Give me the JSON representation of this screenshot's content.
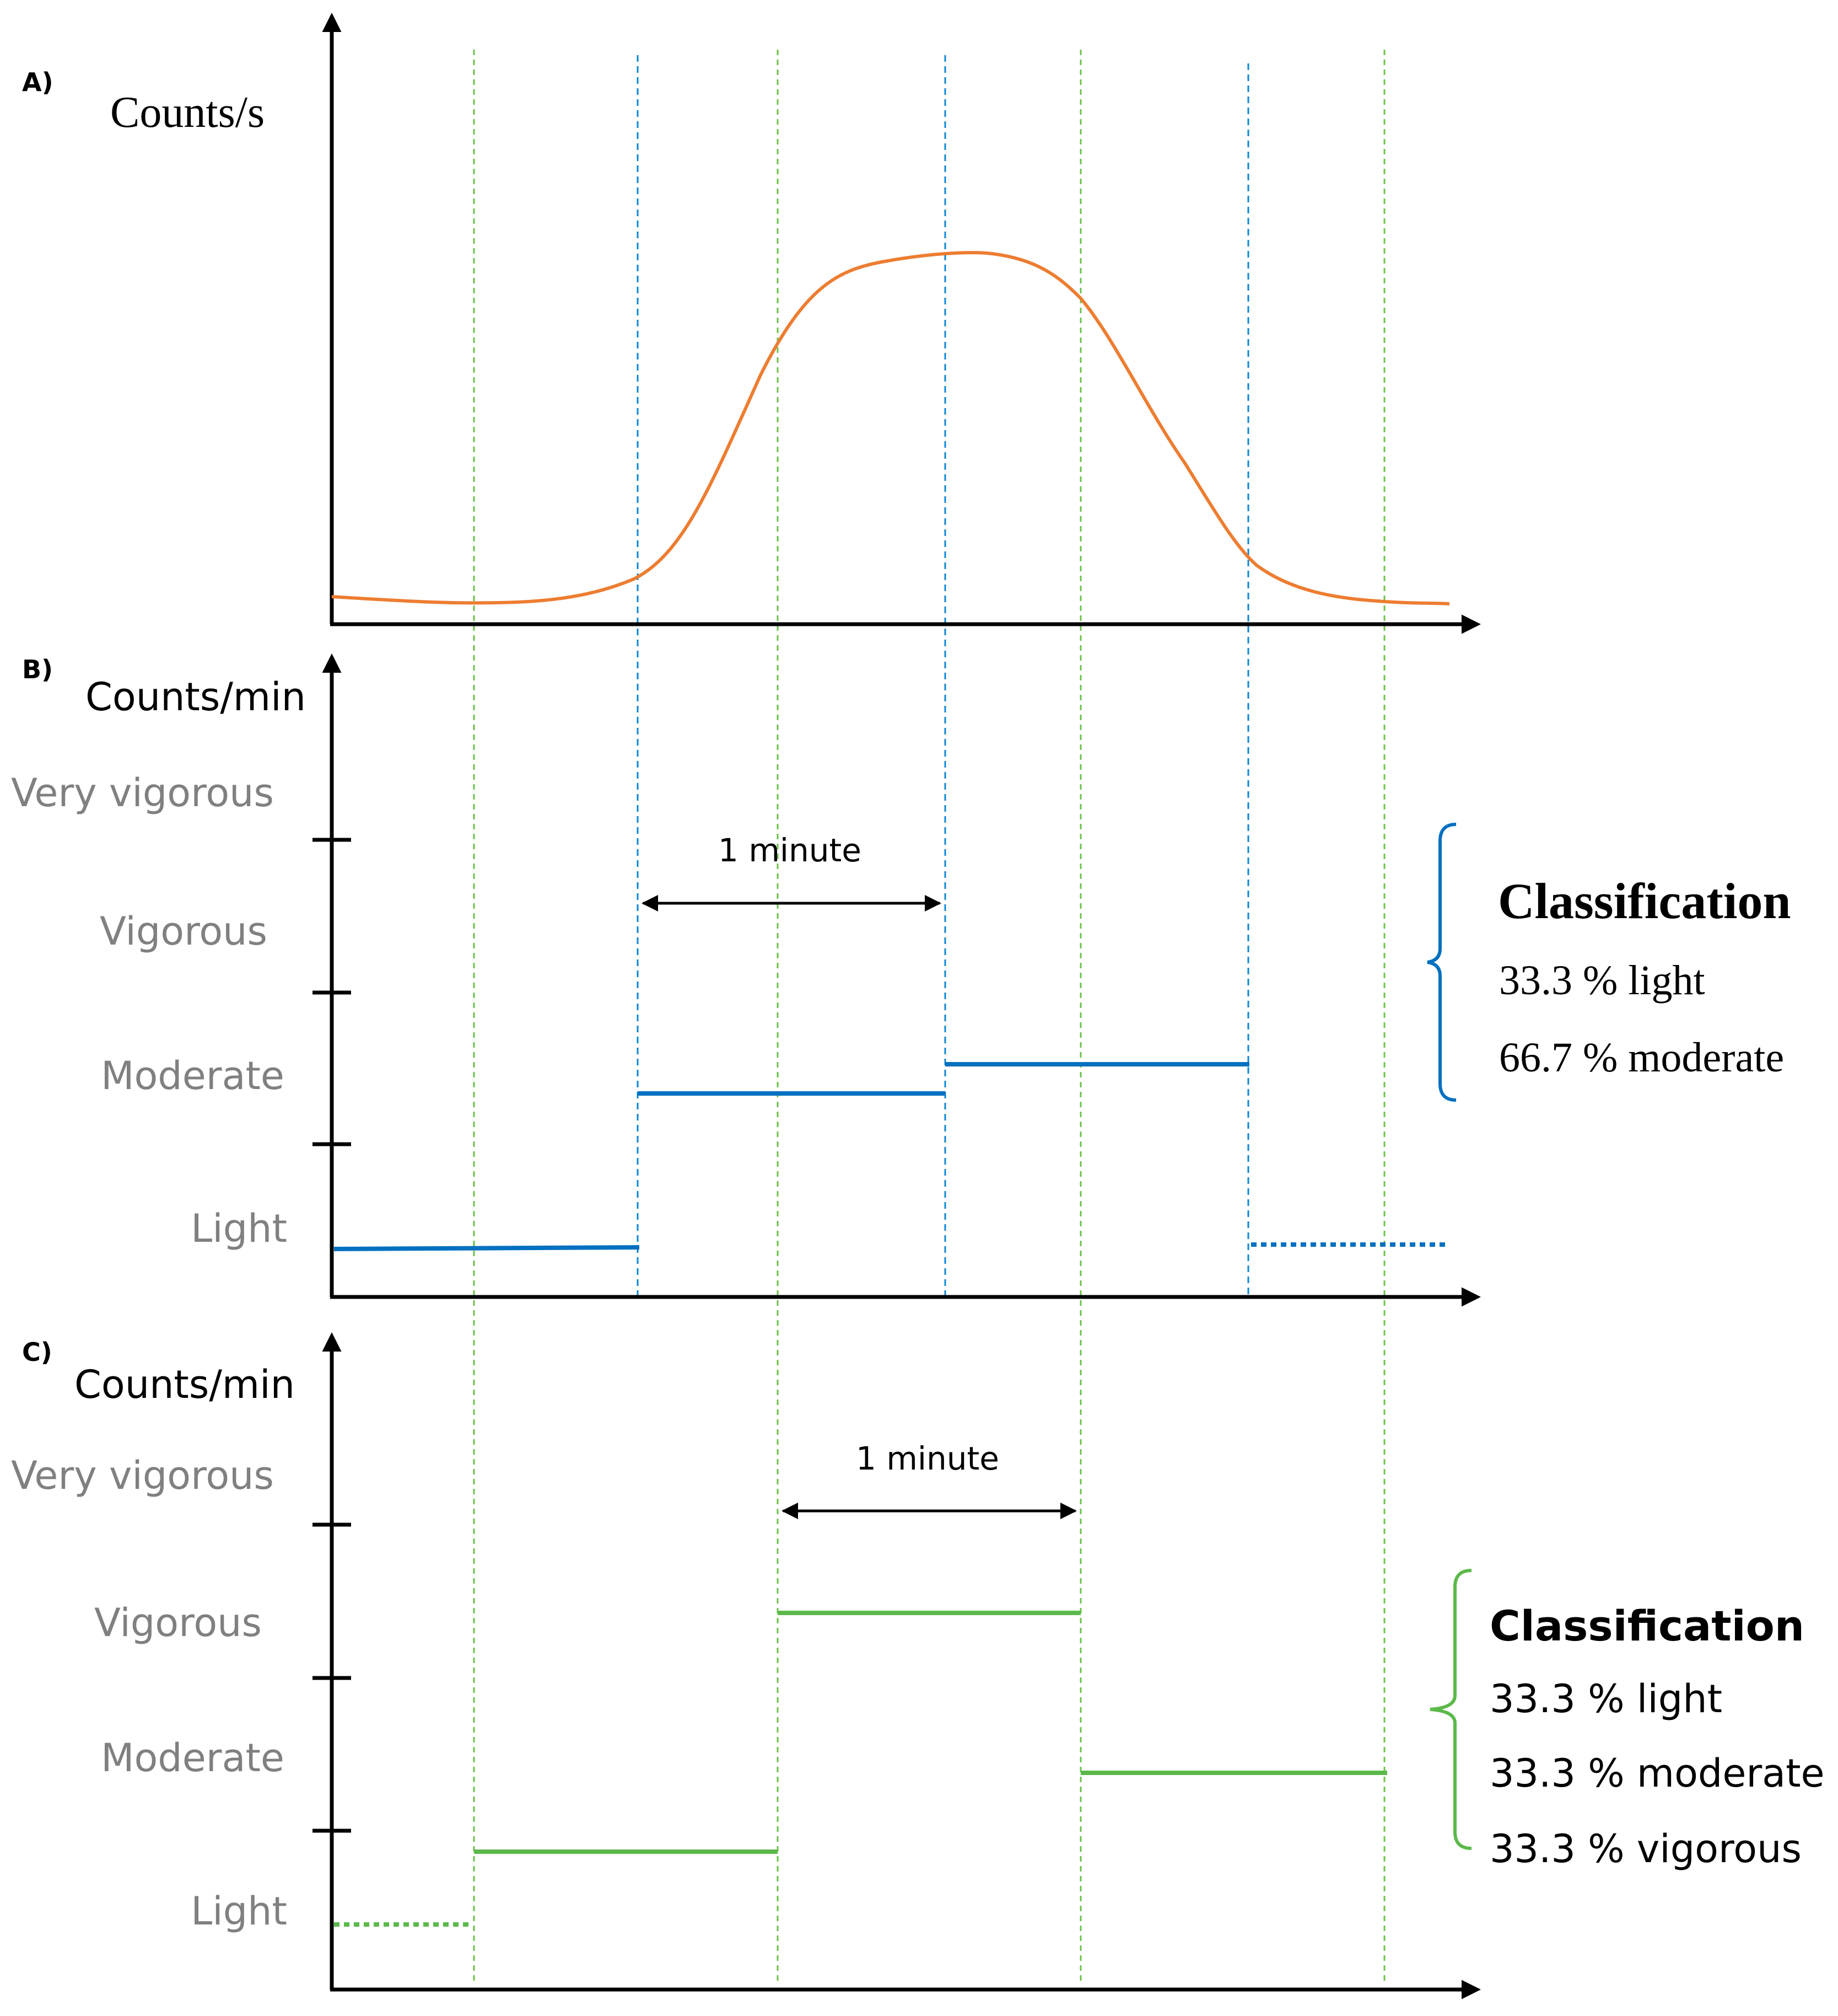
{
  "panels": {
    "a": {
      "letter": "A)",
      "ylabel": "Counts/s"
    },
    "b": {
      "letter": "B)",
      "ylabel": "Counts/min",
      "levels": [
        "Very vigorous",
        "Vigorous",
        "Moderate",
        "Light"
      ],
      "interval_label": "1 minute",
      "classification": {
        "title": "Classification",
        "lines": [
          "33.3 % light",
          "66.7 % moderate"
        ]
      }
    },
    "c": {
      "letter": "C)",
      "ylabel": "Counts/min",
      "levels": [
        "Very vigorous",
        "Vigorous",
        "Moderate",
        "Light"
      ],
      "interval_label": "1 minute",
      "classification": {
        "title": "Classification",
        "lines": [
          "33.3 % light",
          "33.3 % moderate",
          "33.3 % vigorous"
        ]
      }
    }
  },
  "colors": {
    "curve": "#ED7D31",
    "blue_epochs": "#0070C0",
    "green_epochs": "#5BB94A",
    "level_text": "#808080"
  }
}
